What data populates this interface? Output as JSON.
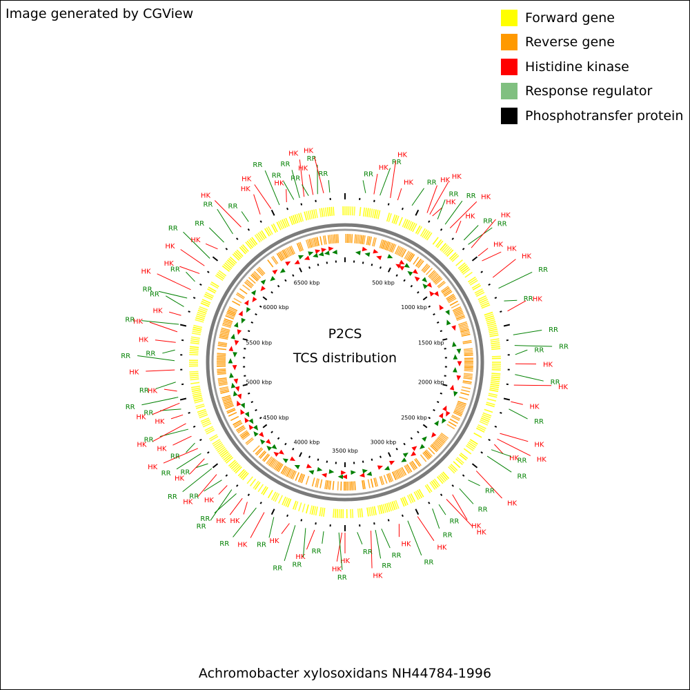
{
  "credit": "Image generated by CGView",
  "legend": [
    {
      "label": "Forward gene",
      "color": "#ffff00"
    },
    {
      "label": "Reverse gene",
      "color": "#ff9900"
    },
    {
      "label": "Histidine kinase",
      "color": "#ff0000"
    },
    {
      "label": "Response regulator",
      "color": "#80c080"
    },
    {
      "label": "Phosphotransfer protein",
      "color": "#000000"
    }
  ],
  "center": {
    "line1": "P2CS",
    "line2": "TCS distribution"
  },
  "organism": "Achromobacter xylosoxidans NH44784-1996",
  "genome_kbp": 7000,
  "tick_labels": [
    "500 kbp",
    "1000 kbp",
    "1500 kbp",
    "2000 kbp",
    "2500 kbp",
    "3000 kbp",
    "3500 kbp",
    "4000 kbp",
    "4500 kbp",
    "5000 kbp",
    "5500 kbp",
    "6000 kbp",
    "6500 kbp"
  ],
  "label_colors": {
    "HK": "#ff0000",
    "RR": "#008000"
  },
  "features": [
    {
      "type": "RR",
      "kbp": 135
    },
    {
      "type": "HK",
      "kbp": 190
    },
    {
      "type": "RR",
      "kbp": 230
    },
    {
      "type": "HK",
      "kbp": 300
    },
    {
      "type": "HK",
      "kbp": 350
    },
    {
      "type": "RR",
      "kbp": 450
    },
    {
      "type": "HK",
      "kbp": 560
    },
    {
      "type": "HK",
      "kbp": 580
    },
    {
      "type": "HK",
      "kbp": 600
    },
    {
      "type": "RR",
      "kbp": 640
    },
    {
      "type": "RR",
      "kbp": 700
    },
    {
      "type": "HK",
      "kbp": 740
    },
    {
      "type": "HK",
      "kbp": 790
    },
    {
      "type": "RR",
      "kbp": 860
    },
    {
      "type": "RR",
      "kbp": 900
    },
    {
      "type": "HK",
      "kbp": 930
    },
    {
      "type": "HK",
      "kbp": 1000
    },
    {
      "type": "HK",
      "kbp": 1040
    },
    {
      "type": "HK",
      "kbp": 1170
    },
    {
      "type": "RR",
      "kbp": 1250
    },
    {
      "type": "RR",
      "kbp": 1340
    },
    {
      "type": "HK",
      "kbp": 1410
    },
    {
      "type": "RR",
      "kbp": 1570
    },
    {
      "type": "RR",
      "kbp": 1640
    },
    {
      "type": "RR",
      "kbp": 1700
    },
    {
      "type": "HK",
      "kbp": 1760
    },
    {
      "type": "RR",
      "kbp": 1830
    },
    {
      "type": "HK",
      "kbp": 1900
    },
    {
      "type": "HK",
      "kbp": 2010
    },
    {
      "type": "RR",
      "kbp": 2060
    },
    {
      "type": "HK",
      "kbp": 2230
    },
    {
      "type": "HK",
      "kbp": 2270
    },
    {
      "type": "HK",
      "kbp": 2310
    },
    {
      "type": "RR",
      "kbp": 2350
    },
    {
      "type": "RR",
      "kbp": 2400
    },
    {
      "type": "HK",
      "kbp": 2520
    },
    {
      "type": "RR",
      "kbp": 2600
    },
    {
      "type": "RR",
      "kbp": 2680
    },
    {
      "type": "HK",
      "kbp": 2740
    },
    {
      "type": "HK",
      "kbp": 2790
    },
    {
      "type": "RR",
      "kbp": 2850
    },
    {
      "type": "RR",
      "kbp": 2900
    },
    {
      "type": "HK",
      "kbp": 3010
    },
    {
      "type": "RR",
      "kbp": 3080
    },
    {
      "type": "HK",
      "kbp": 3140
    },
    {
      "type": "RR",
      "kbp": 3260
    },
    {
      "type": "RR",
      "kbp": 3300
    },
    {
      "type": "HK",
      "kbp": 3330
    },
    {
      "type": "RR",
      "kbp": 3420
    },
    {
      "type": "HK",
      "kbp": 3500
    },
    {
      "type": "HK",
      "kbp": 3520
    },
    {
      "type": "RR",
      "kbp": 3540
    },
    {
      "type": "RR",
      "kbp": 3640
    },
    {
      "type": "HK",
      "kbp": 3700
    },
    {
      "type": "RR",
      "kbp": 3760
    },
    {
      "type": "RR",
      "kbp": 3830
    },
    {
      "type": "HK",
      "kbp": 3870
    },
    {
      "type": "RR",
      "kbp": 3980
    },
    {
      "type": "HK",
      "kbp": 4050
    },
    {
      "type": "RR",
      "kbp": 4110
    },
    {
      "type": "HK",
      "kbp": 4180
    },
    {
      "type": "HK",
      "kbp": 4220
    },
    {
      "type": "RR",
      "kbp": 4270
    },
    {
      "type": "RR",
      "kbp": 4310
    },
    {
      "type": "HK",
      "kbp": 4350
    },
    {
      "type": "RR",
      "kbp": 4400
    },
    {
      "type": "HK",
      "kbp": 4450
    },
    {
      "type": "RR",
      "kbp": 4500
    },
    {
      "type": "RR",
      "kbp": 4540
    },
    {
      "type": "HK",
      "kbp": 4580
    },
    {
      "type": "RR",
      "kbp": 4620
    },
    {
      "type": "HK",
      "kbp": 4660
    },
    {
      "type": "RR",
      "kbp": 4700
    },
    {
      "type": "HK",
      "kbp": 4750
    },
    {
      "type": "RR",
      "kbp": 4800
    },
    {
      "type": "HK",
      "kbp": 4840
    },
    {
      "type": "HK",
      "kbp": 4900
    },
    {
      "type": "RR",
      "kbp": 4940
    },
    {
      "type": "HK",
      "kbp": 4980
    },
    {
      "type": "RR",
      "kbp": 5020
    },
    {
      "type": "HK",
      "kbp": 5060
    },
    {
      "type": "RR",
      "kbp": 5120
    },
    {
      "type": "HK",
      "kbp": 5200
    },
    {
      "type": "RR",
      "kbp": 5260
    },
    {
      "type": "RR",
      "kbp": 5330
    },
    {
      "type": "HK",
      "kbp": 5380
    },
    {
      "type": "HK",
      "kbp": 5450
    },
    {
      "type": "RR",
      "kbp": 5500
    },
    {
      "type": "HK",
      "kbp": 5560
    },
    {
      "type": "RR",
      "kbp": 5620
    },
    {
      "type": "RR",
      "kbp": 5680
    },
    {
      "type": "HK",
      "kbp": 5740
    },
    {
      "type": "RR",
      "kbp": 5800
    },
    {
      "type": "HK",
      "kbp": 5860
    },
    {
      "type": "HK",
      "kbp": 5920
    },
    {
      "type": "RR",
      "kbp": 5980
    },
    {
      "type": "HK",
      "kbp": 6060
    },
    {
      "type": "RR",
      "kbp": 6120
    },
    {
      "type": "RR",
      "kbp": 6200
    },
    {
      "type": "HK",
      "kbp": 6270
    },
    {
      "type": "RR",
      "kbp": 6330
    },
    {
      "type": "HK",
      "kbp": 6420
    },
    {
      "type": "HK",
      "kbp": 6500
    },
    {
      "type": "RR",
      "kbp": 6560
    },
    {
      "type": "HK",
      "kbp": 6610
    },
    {
      "type": "RR",
      "kbp": 6660
    },
    {
      "type": "RR",
      "kbp": 6700
    },
    {
      "type": "HK",
      "kbp": 6730
    },
    {
      "type": "RR",
      "kbp": 6760
    },
    {
      "type": "HK",
      "kbp": 6790
    },
    {
      "type": "RR",
      "kbp": 6820
    },
    {
      "type": "HK",
      "kbp": 6860
    },
    {
      "type": "RR",
      "kbp": 6900
    }
  ]
}
